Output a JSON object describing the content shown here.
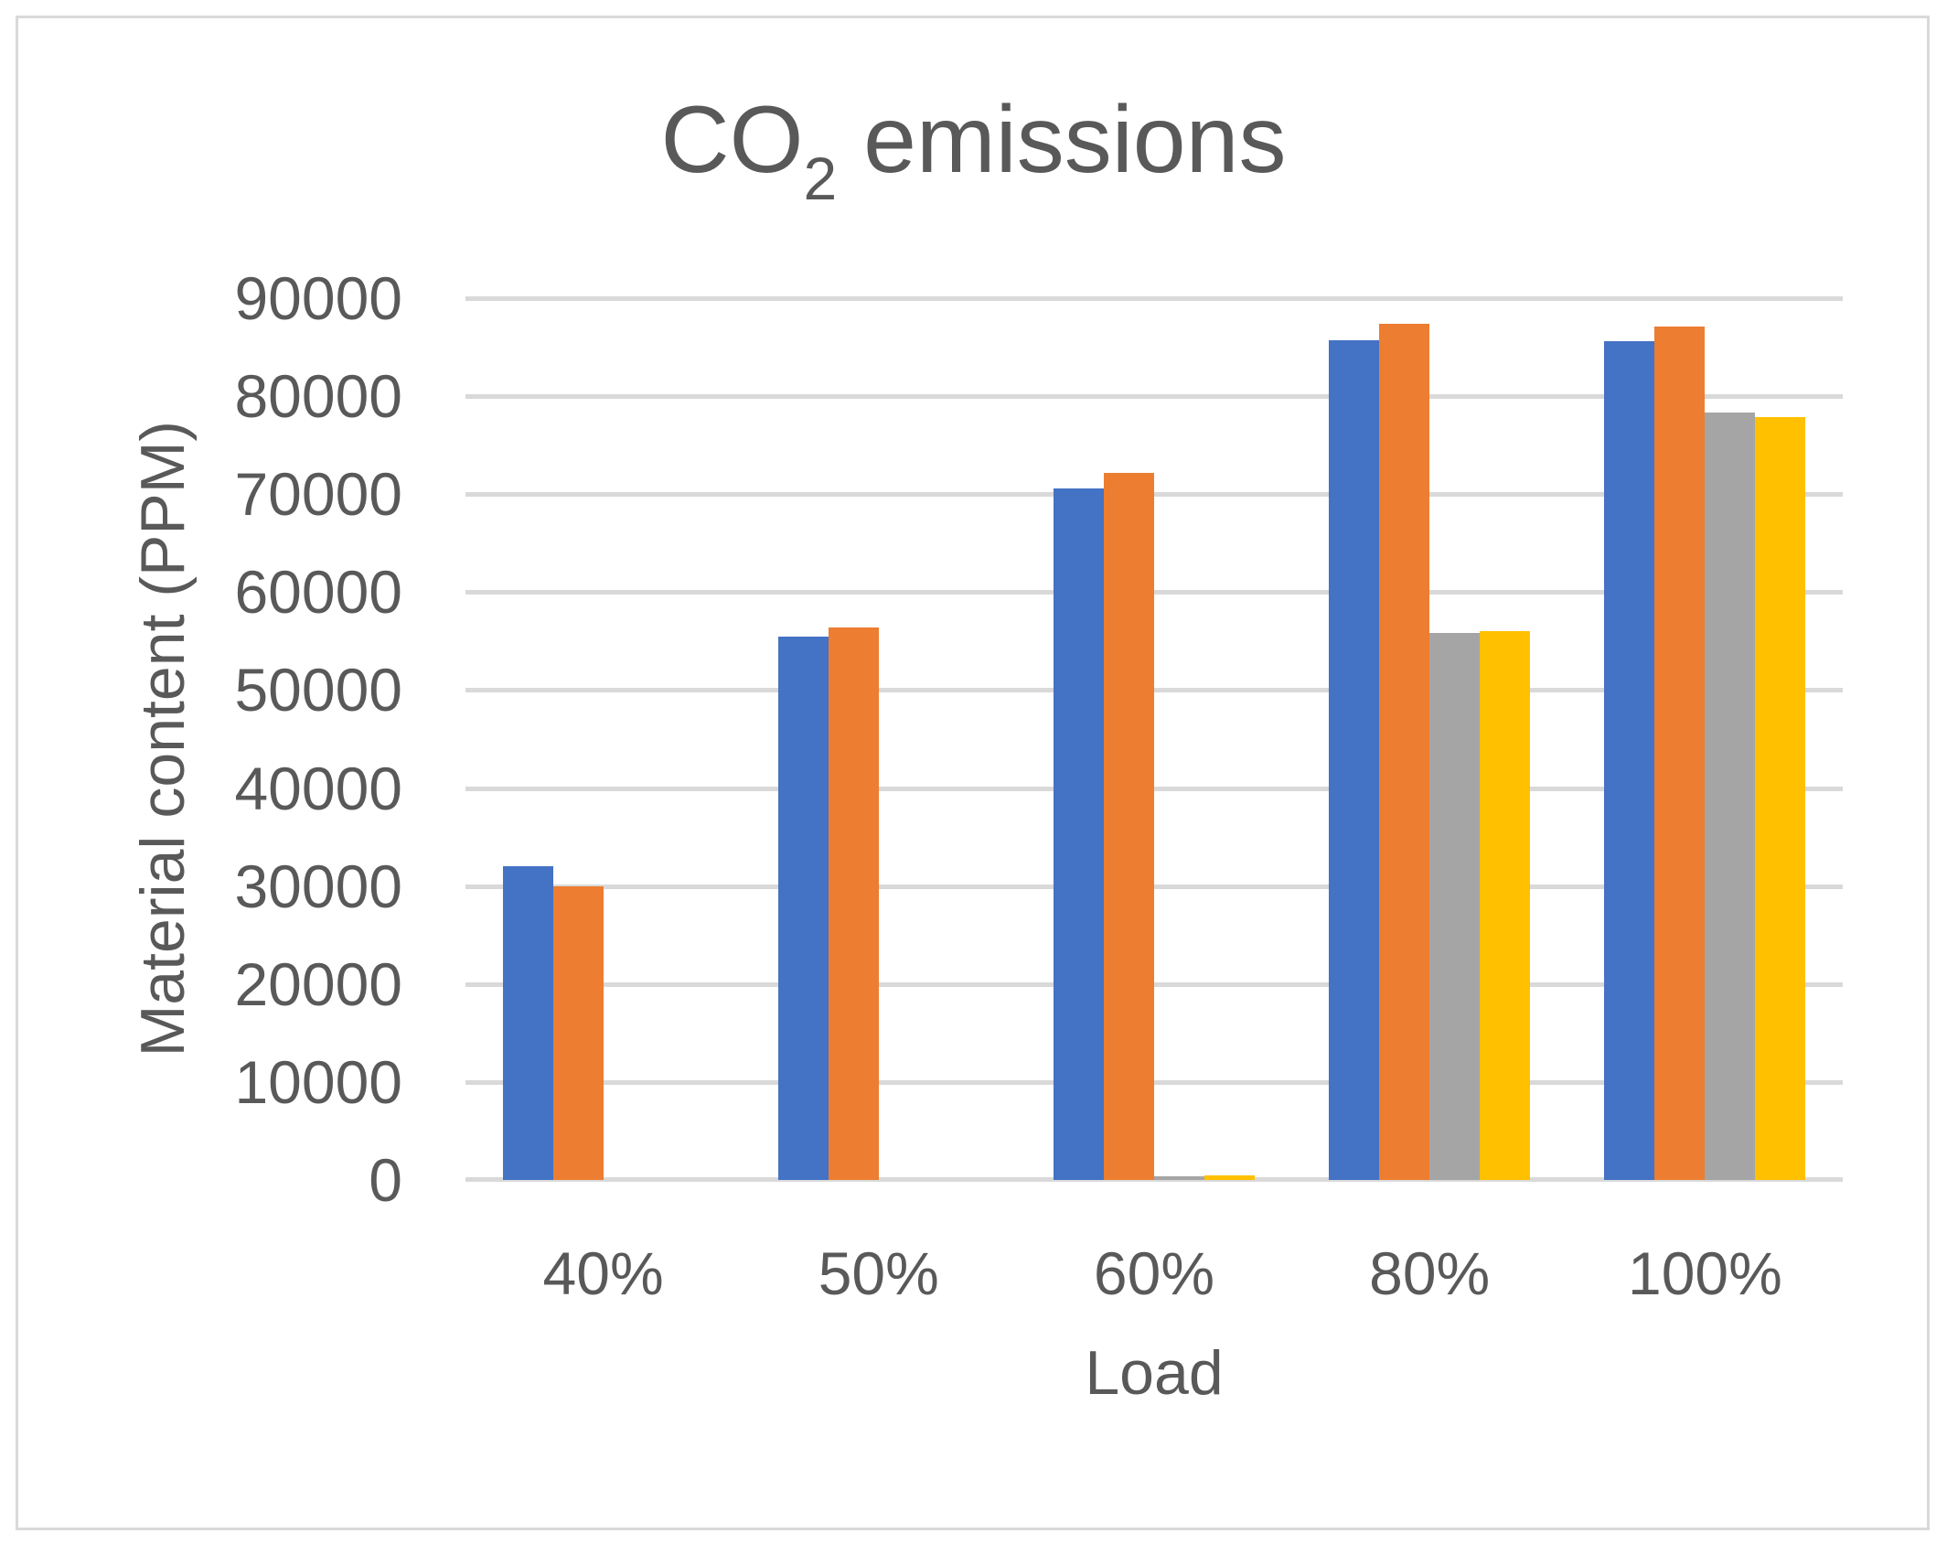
{
  "chart_data": {
    "type": "bar",
    "title": "CO2 emissions",
    "title_parts": {
      "main": "CO",
      "sub": "2",
      "rest": " emissions"
    },
    "xlabel": "Load",
    "ylabel": "Material content (PPM)",
    "categories": [
      "40%",
      "50%",
      "60%",
      "80%",
      "100%"
    ],
    "series": [
      {
        "name": "blue",
        "color": "#4472C4",
        "values": [
          32000,
          55500,
          70600,
          85700,
          85600
        ]
      },
      {
        "name": "orange",
        "color": "#ED7D31",
        "values": [
          30000,
          56400,
          72200,
          87400,
          87100
        ]
      },
      {
        "name": "gray",
        "color": "#A5A5A5",
        "values": [
          0,
          0,
          400,
          55800,
          78300
        ]
      },
      {
        "name": "yellow",
        "color": "#FFC000",
        "values": [
          0,
          0,
          500,
          56000,
          77900
        ]
      }
    ],
    "ylim": [
      0,
      90000
    ],
    "yticks": [
      0,
      10000,
      20000,
      30000,
      40000,
      50000,
      60000,
      70000,
      80000,
      90000
    ],
    "grid": "horizontal",
    "legend_position": "none"
  },
  "colors": {
    "gridline": "#D9D9D9",
    "axis_line": "#D9D9D9",
    "frame_border": "#D9D9D9",
    "text": "#595959",
    "background": "#FFFFFF"
  }
}
